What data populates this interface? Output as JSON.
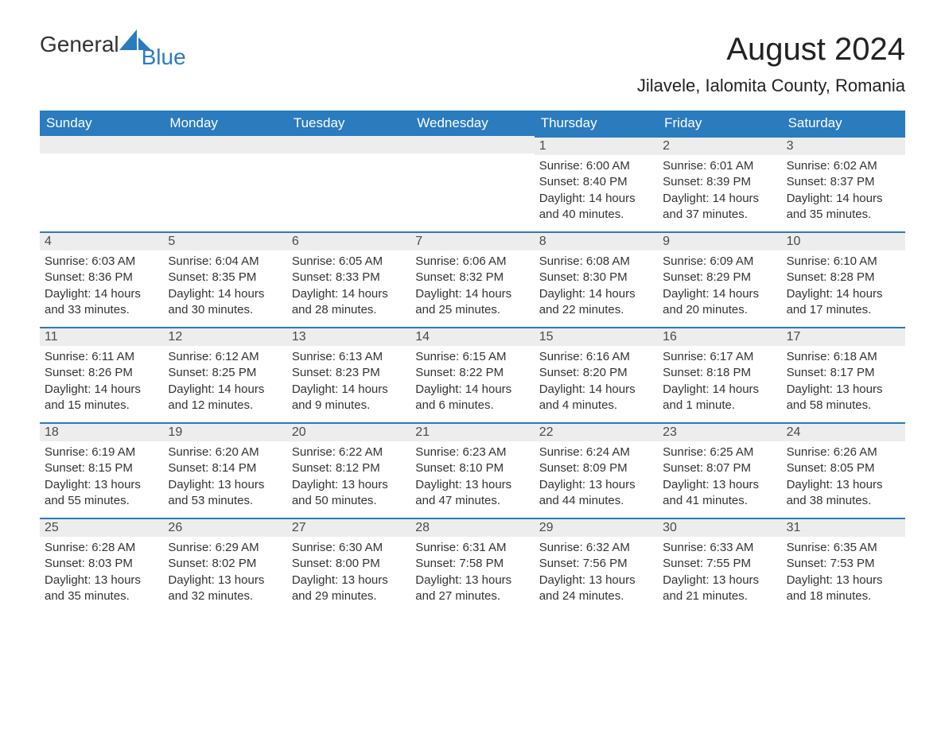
{
  "logo": {
    "text_general": "General",
    "text_blue": "Blue"
  },
  "title": "August 2024",
  "location": "Jilavele, Ialomita County, Romania",
  "colors": {
    "header_bg": "#2b7bbf",
    "header_text": "#ffffff",
    "day_bar_bg": "#ededed",
    "day_bar_border": "#2b7bbf",
    "body_text": "#333333",
    "page_bg": "#ffffff"
  },
  "weekdays": [
    "Sunday",
    "Monday",
    "Tuesday",
    "Wednesday",
    "Thursday",
    "Friday",
    "Saturday"
  ],
  "weeks": [
    [
      {
        "day": "",
        "sunrise": "",
        "sunset": "",
        "daylight": ""
      },
      {
        "day": "",
        "sunrise": "",
        "sunset": "",
        "daylight": ""
      },
      {
        "day": "",
        "sunrise": "",
        "sunset": "",
        "daylight": ""
      },
      {
        "day": "",
        "sunrise": "",
        "sunset": "",
        "daylight": ""
      },
      {
        "day": "1",
        "sunrise": "Sunrise: 6:00 AM",
        "sunset": "Sunset: 8:40 PM",
        "daylight": "Daylight: 14 hours and 40 minutes."
      },
      {
        "day": "2",
        "sunrise": "Sunrise: 6:01 AM",
        "sunset": "Sunset: 8:39 PM",
        "daylight": "Daylight: 14 hours and 37 minutes."
      },
      {
        "day": "3",
        "sunrise": "Sunrise: 6:02 AM",
        "sunset": "Sunset: 8:37 PM",
        "daylight": "Daylight: 14 hours and 35 minutes."
      }
    ],
    [
      {
        "day": "4",
        "sunrise": "Sunrise: 6:03 AM",
        "sunset": "Sunset: 8:36 PM",
        "daylight": "Daylight: 14 hours and 33 minutes."
      },
      {
        "day": "5",
        "sunrise": "Sunrise: 6:04 AM",
        "sunset": "Sunset: 8:35 PM",
        "daylight": "Daylight: 14 hours and 30 minutes."
      },
      {
        "day": "6",
        "sunrise": "Sunrise: 6:05 AM",
        "sunset": "Sunset: 8:33 PM",
        "daylight": "Daylight: 14 hours and 28 minutes."
      },
      {
        "day": "7",
        "sunrise": "Sunrise: 6:06 AM",
        "sunset": "Sunset: 8:32 PM",
        "daylight": "Daylight: 14 hours and 25 minutes."
      },
      {
        "day": "8",
        "sunrise": "Sunrise: 6:08 AM",
        "sunset": "Sunset: 8:30 PM",
        "daylight": "Daylight: 14 hours and 22 minutes."
      },
      {
        "day": "9",
        "sunrise": "Sunrise: 6:09 AM",
        "sunset": "Sunset: 8:29 PM",
        "daylight": "Daylight: 14 hours and 20 minutes."
      },
      {
        "day": "10",
        "sunrise": "Sunrise: 6:10 AM",
        "sunset": "Sunset: 8:28 PM",
        "daylight": "Daylight: 14 hours and 17 minutes."
      }
    ],
    [
      {
        "day": "11",
        "sunrise": "Sunrise: 6:11 AM",
        "sunset": "Sunset: 8:26 PM",
        "daylight": "Daylight: 14 hours and 15 minutes."
      },
      {
        "day": "12",
        "sunrise": "Sunrise: 6:12 AM",
        "sunset": "Sunset: 8:25 PM",
        "daylight": "Daylight: 14 hours and 12 minutes."
      },
      {
        "day": "13",
        "sunrise": "Sunrise: 6:13 AM",
        "sunset": "Sunset: 8:23 PM",
        "daylight": "Daylight: 14 hours and 9 minutes."
      },
      {
        "day": "14",
        "sunrise": "Sunrise: 6:15 AM",
        "sunset": "Sunset: 8:22 PM",
        "daylight": "Daylight: 14 hours and 6 minutes."
      },
      {
        "day": "15",
        "sunrise": "Sunrise: 6:16 AM",
        "sunset": "Sunset: 8:20 PM",
        "daylight": "Daylight: 14 hours and 4 minutes."
      },
      {
        "day": "16",
        "sunrise": "Sunrise: 6:17 AM",
        "sunset": "Sunset: 8:18 PM",
        "daylight": "Daylight: 14 hours and 1 minute."
      },
      {
        "day": "17",
        "sunrise": "Sunrise: 6:18 AM",
        "sunset": "Sunset: 8:17 PM",
        "daylight": "Daylight: 13 hours and 58 minutes."
      }
    ],
    [
      {
        "day": "18",
        "sunrise": "Sunrise: 6:19 AM",
        "sunset": "Sunset: 8:15 PM",
        "daylight": "Daylight: 13 hours and 55 minutes."
      },
      {
        "day": "19",
        "sunrise": "Sunrise: 6:20 AM",
        "sunset": "Sunset: 8:14 PM",
        "daylight": "Daylight: 13 hours and 53 minutes."
      },
      {
        "day": "20",
        "sunrise": "Sunrise: 6:22 AM",
        "sunset": "Sunset: 8:12 PM",
        "daylight": "Daylight: 13 hours and 50 minutes."
      },
      {
        "day": "21",
        "sunrise": "Sunrise: 6:23 AM",
        "sunset": "Sunset: 8:10 PM",
        "daylight": "Daylight: 13 hours and 47 minutes."
      },
      {
        "day": "22",
        "sunrise": "Sunrise: 6:24 AM",
        "sunset": "Sunset: 8:09 PM",
        "daylight": "Daylight: 13 hours and 44 minutes."
      },
      {
        "day": "23",
        "sunrise": "Sunrise: 6:25 AM",
        "sunset": "Sunset: 8:07 PM",
        "daylight": "Daylight: 13 hours and 41 minutes."
      },
      {
        "day": "24",
        "sunrise": "Sunrise: 6:26 AM",
        "sunset": "Sunset: 8:05 PM",
        "daylight": "Daylight: 13 hours and 38 minutes."
      }
    ],
    [
      {
        "day": "25",
        "sunrise": "Sunrise: 6:28 AM",
        "sunset": "Sunset: 8:03 PM",
        "daylight": "Daylight: 13 hours and 35 minutes."
      },
      {
        "day": "26",
        "sunrise": "Sunrise: 6:29 AM",
        "sunset": "Sunset: 8:02 PM",
        "daylight": "Daylight: 13 hours and 32 minutes."
      },
      {
        "day": "27",
        "sunrise": "Sunrise: 6:30 AM",
        "sunset": "Sunset: 8:00 PM",
        "daylight": "Daylight: 13 hours and 29 minutes."
      },
      {
        "day": "28",
        "sunrise": "Sunrise: 6:31 AM",
        "sunset": "Sunset: 7:58 PM",
        "daylight": "Daylight: 13 hours and 27 minutes."
      },
      {
        "day": "29",
        "sunrise": "Sunrise: 6:32 AM",
        "sunset": "Sunset: 7:56 PM",
        "daylight": "Daylight: 13 hours and 24 minutes."
      },
      {
        "day": "30",
        "sunrise": "Sunrise: 6:33 AM",
        "sunset": "Sunset: 7:55 PM",
        "daylight": "Daylight: 13 hours and 21 minutes."
      },
      {
        "day": "31",
        "sunrise": "Sunrise: 6:35 AM",
        "sunset": "Sunset: 7:53 PM",
        "daylight": "Daylight: 13 hours and 18 minutes."
      }
    ]
  ]
}
